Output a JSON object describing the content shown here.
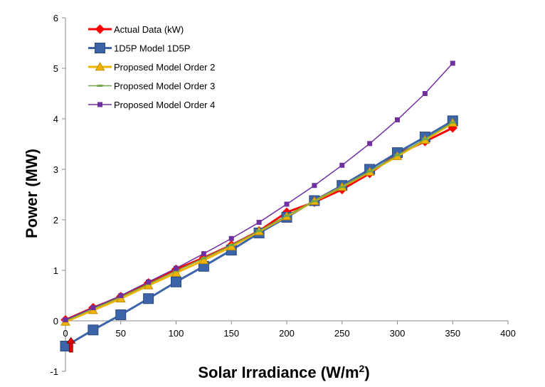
{
  "chart_data": {
    "type": "line",
    "title": "",
    "xlabel": "Solar Irradiance (W/m",
    "xlabel_superscript": "2",
    "xlabel_suffix": ")",
    "ylabel": "Power (MW)",
    "xlim": [
      0,
      400
    ],
    "ylim": [
      -1,
      6
    ],
    "xticks": [
      0,
      50,
      100,
      150,
      200,
      250,
      300,
      350,
      400
    ],
    "yticks": [
      -1,
      0,
      1,
      2,
      3,
      4,
      5,
      6
    ],
    "grid": false,
    "legend_position": "top-left",
    "x": [
      0,
      25,
      50,
      75,
      100,
      125,
      150,
      175,
      200,
      225,
      250,
      275,
      300,
      325,
      350
    ],
    "series": [
      {
        "name": "Actual Data (kW)",
        "color": "#ff0000",
        "marker": "diamond",
        "values": [
          0.02,
          0.26,
          0.48,
          0.75,
          1.02,
          1.25,
          1.5,
          1.78,
          2.15,
          2.35,
          2.6,
          2.92,
          3.3,
          3.55,
          3.82
        ]
      },
      {
        "name": "1D5P Model 1D5P",
        "color": "#3c64a8",
        "marker": "square",
        "values": [
          -0.5,
          -0.18,
          0.12,
          0.44,
          0.77,
          1.08,
          1.4,
          1.74,
          2.05,
          2.38,
          2.68,
          3.0,
          3.33,
          3.64,
          3.96
        ]
      },
      {
        "name": "Proposed Model Order 2",
        "color": "#f0b400",
        "marker": "triangle",
        "values": [
          -0.02,
          0.21,
          0.44,
          0.7,
          0.95,
          1.2,
          1.47,
          1.77,
          2.07,
          2.37,
          2.65,
          2.95,
          3.26,
          3.58,
          3.92
        ]
      },
      {
        "name": "Proposed Model Order 3",
        "color": "#70a84a",
        "marker": "dash",
        "values": [
          0.0,
          0.24,
          0.47,
          0.73,
          0.99,
          1.24,
          1.5,
          1.78,
          2.08,
          2.37,
          2.65,
          2.96,
          3.28,
          3.6,
          3.93
        ]
      },
      {
        "name": "Proposed Model Order 4",
        "color": "#7030a0",
        "marker": "smallsquare",
        "values": [
          0.02,
          0.26,
          0.5,
          0.77,
          1.04,
          1.33,
          1.63,
          1.95,
          2.31,
          2.68,
          3.08,
          3.51,
          3.98,
          4.5,
          5.1
        ]
      }
    ],
    "annotations": [
      {
        "type": "arrow",
        "color": "#e00000",
        "x": 5,
        "y_from": -0.62,
        "y_to": -0.33,
        "direction": "up"
      }
    ]
  }
}
